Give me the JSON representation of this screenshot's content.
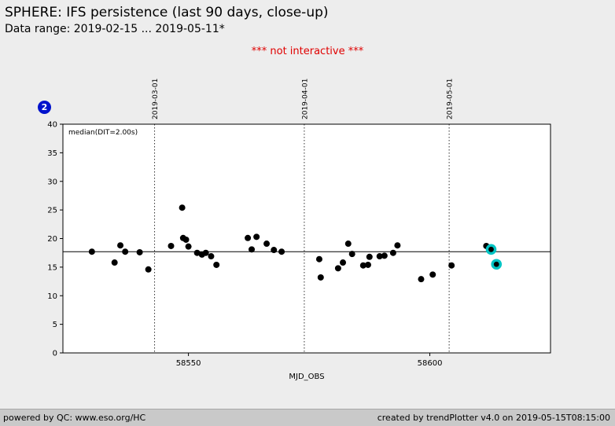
{
  "header": {
    "title": "SPHERE: IFS persistence (last 90 days, close-up)",
    "data_range": "Data range: 2019-02-15 ... 2019-05-11*",
    "warning": "*** not interactive ***"
  },
  "badge": {
    "label": "2",
    "color": "#0012cc"
  },
  "chart_data": {
    "type": "scatter",
    "xlabel": "MJD_OBS",
    "ylabel": "",
    "xlim": [
      58524,
      58625
    ],
    "ylim": [
      0,
      40
    ],
    "xticks": [
      58550,
      58600
    ],
    "ytick_step": 5,
    "grid": false,
    "legend": "median(DIT=2.00s)",
    "median_line": 17.7,
    "point_color": "#000000",
    "highlight_color": "#00c4c4",
    "date_lines": [
      {
        "label": "2019-03-01",
        "mjd": 58543
      },
      {
        "label": "2019-04-01",
        "mjd": 58574
      },
      {
        "label": "2019-05-01",
        "mjd": 58604
      }
    ],
    "points": [
      [
        58530.0,
        17.7
      ],
      [
        58534.7,
        15.8
      ],
      [
        58535.9,
        18.8
      ],
      [
        58536.9,
        17.7
      ],
      [
        58539.9,
        17.6
      ],
      [
        58541.7,
        14.6
      ],
      [
        58546.4,
        18.7
      ],
      [
        58548.7,
        25.4
      ],
      [
        58548.9,
        20.1
      ],
      [
        58549.5,
        19.8
      ],
      [
        58550.0,
        18.6
      ],
      [
        58551.8,
        17.5
      ],
      [
        58552.8,
        17.2
      ],
      [
        58553.6,
        17.5
      ],
      [
        58554.7,
        16.9
      ],
      [
        58555.8,
        15.4
      ],
      [
        58562.3,
        20.1
      ],
      [
        58563.1,
        18.1
      ],
      [
        58564.1,
        20.3
      ],
      [
        58566.2,
        19.1
      ],
      [
        58567.7,
        18.0
      ],
      [
        58569.3,
        17.7
      ],
      [
        58577.1,
        16.4
      ],
      [
        58577.4,
        13.2
      ],
      [
        58581.0,
        14.8
      ],
      [
        58582.0,
        15.8
      ],
      [
        58583.1,
        19.1
      ],
      [
        58583.9,
        17.3
      ],
      [
        58586.2,
        15.3
      ],
      [
        58587.2,
        15.4
      ],
      [
        58587.5,
        16.8
      ],
      [
        58589.6,
        16.9
      ],
      [
        58590.6,
        17.0
      ],
      [
        58592.4,
        17.5
      ],
      [
        58593.3,
        18.8
      ],
      [
        58598.2,
        12.9
      ],
      [
        58600.6,
        13.7
      ],
      [
        58604.5,
        15.3
      ],
      [
        58611.7,
        18.7
      ]
    ],
    "highlighted_points": [
      [
        58612.7,
        18.1
      ],
      [
        58613.8,
        15.5
      ]
    ]
  },
  "footer": {
    "left": "powered by QC: www.eso.org/HC",
    "right": "created by trendPlotter v4.0 on 2019-05-15T08:15:00"
  }
}
